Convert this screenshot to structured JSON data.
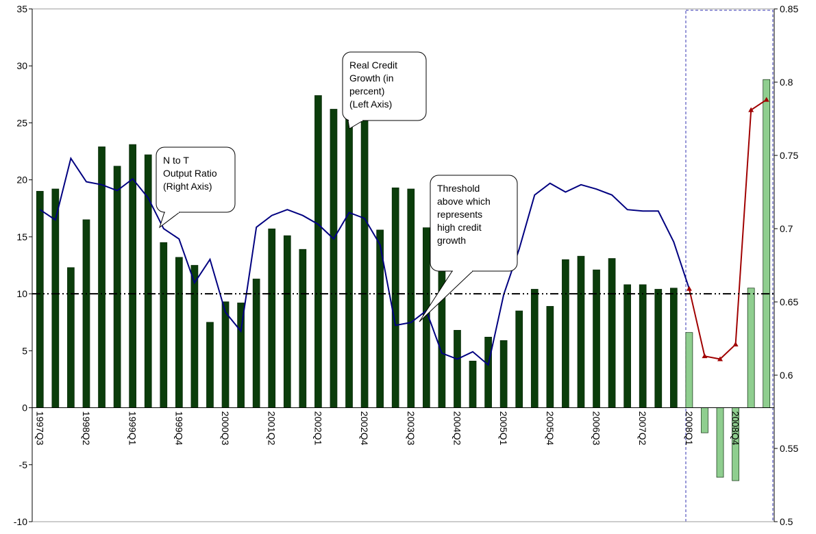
{
  "chart_data": {
    "type": "bar",
    "categories": [
      "1997Q3",
      null,
      null,
      "1998Q2",
      null,
      null,
      "1999Q1",
      null,
      null,
      "1999Q4",
      null,
      null,
      "2000Q3",
      null,
      null,
      "2001Q2",
      null,
      null,
      "2002Q1",
      null,
      null,
      "2002Q4",
      null,
      null,
      "2003Q3",
      null,
      null,
      "2004Q2",
      null,
      null,
      "2005Q1",
      null,
      null,
      "2005Q4",
      null,
      null,
      "2006Q3",
      null,
      null,
      "2007Q2",
      null,
      null,
      "2008Q1",
      null,
      null,
      "2008Q4",
      null,
      null
    ],
    "series": [
      {
        "color": "#0b3d0b",
        "values": [
          19.0,
          19.2,
          12.3,
          16.5,
          22.9,
          21.2,
          23.1,
          22.2,
          14.5,
          13.2,
          12.5,
          7.5,
          9.3,
          9.2,
          11.3,
          15.7,
          15.1,
          13.9,
          27.4,
          26.2,
          26.0,
          25.5,
          15.6,
          19.3,
          19.2,
          15.8,
          12.0,
          6.8,
          4.1,
          6.2,
          5.9,
          8.5,
          10.4,
          8.9,
          13.0,
          13.3,
          12.1,
          13.1,
          10.8,
          10.8,
          10.4,
          10.5,
          null,
          null,
          null,
          null,
          null,
          null
        ]
      },
      {
        "color": "#8fce8f",
        "values": [
          null,
          null,
          null,
          null,
          null,
          null,
          null,
          null,
          null,
          null,
          null,
          null,
          null,
          null,
          null,
          null,
          null,
          null,
          null,
          null,
          null,
          null,
          null,
          null,
          null,
          null,
          null,
          null,
          null,
          null,
          null,
          null,
          null,
          null,
          null,
          null,
          null,
          null,
          null,
          null,
          null,
          null,
          6.6,
          -2.2,
          -6.1,
          -6.4,
          10.5,
          28.8
        ]
      },
      {
        "type": "line",
        "axis": "y2",
        "color": "#000080",
        "values": [
          0.713,
          0.706,
          0.748,
          0.732,
          0.73,
          0.726,
          0.734,
          0.721,
          0.7,
          0.693,
          0.663,
          0.679,
          0.643,
          0.63,
          0.701,
          0.709,
          0.713,
          0.709,
          0.703,
          0.693,
          0.711,
          0.707,
          0.689,
          0.634,
          0.636,
          0.644,
          0.615,
          0.611,
          0.616,
          0.607,
          0.655,
          0.686,
          0.723,
          0.731,
          0.725,
          0.73,
          0.727,
          0.723,
          0.713,
          0.712,
          0.712,
          0.691,
          0.659,
          null,
          null,
          null,
          null,
          null
        ]
      },
      {
        "type": "line",
        "axis": "y2",
        "color": "#a00000",
        "values": [
          null,
          null,
          null,
          null,
          null,
          null,
          null,
          null,
          null,
          null,
          null,
          null,
          null,
          null,
          null,
          null,
          null,
          null,
          null,
          null,
          null,
          null,
          null,
          null,
          null,
          null,
          null,
          null,
          null,
          null,
          null,
          null,
          null,
          null,
          null,
          null,
          null,
          null,
          null,
          null,
          null,
          null,
          0.659,
          0.613,
          0.611,
          0.621,
          0.781,
          0.788
        ]
      }
    ],
    "threshold": 10,
    "ylim": [
      -10,
      35
    ],
    "yticks": [
      -10,
      -5,
      0,
      5,
      10,
      15,
      20,
      25,
      30,
      35
    ],
    "y2lim": [
      0.5,
      0.85
    ],
    "y2ticks": [
      0.5,
      0.55,
      0.6,
      0.65,
      0.7,
      0.75,
      0.8,
      0.85
    ],
    "annotations": [
      {
        "lines": [
          "N to T",
          "Output Ratio",
          "(Right Axis)"
        ]
      },
      {
        "lines": [
          "Real Credit",
          "Growth (in",
          "percent)",
          "(Left Axis)"
        ]
      },
      {
        "lines": [
          "Threshold",
          "above which",
          "represents",
          "high credit",
          "growth"
        ]
      }
    ]
  }
}
